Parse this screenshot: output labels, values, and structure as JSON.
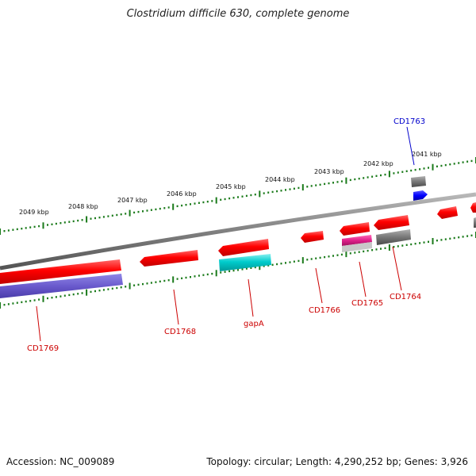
{
  "title": "Clostridium difficile 630, complete genome",
  "footer": {
    "accession": "Accession: NC_009089",
    "meta": "Topology: circular; Length: 4,290,252 bp; Genes: 3,926"
  },
  "scale_ticks": [
    {
      "label": "2049 kbp"
    },
    {
      "label": "2048 kbp"
    },
    {
      "label": "2047 kbp"
    },
    {
      "label": "2046 kbp"
    },
    {
      "label": "2045 kbp"
    },
    {
      "label": "2044 kbp"
    },
    {
      "label": "2043 kbp"
    },
    {
      "label": "2042 kbp"
    },
    {
      "label": "2041 kbp"
    }
  ],
  "gene_labels": {
    "cd1763": "CD1763",
    "cd1764": "CD1764",
    "cd1765": "CD1765",
    "cd1766": "CD1766",
    "gapa": "gapA",
    "cd1768": "CD1768",
    "cd1769": "CD1769"
  },
  "colors": {
    "label_red": "#cc0000",
    "label_blue": "#0000cc",
    "backbone": "#808080",
    "tick_green": "#1a7a1a",
    "feature_red": "#ff0000",
    "feature_blue_violet": "#6a5acd",
    "feature_cyan": "#00c8c8",
    "feature_magenta": "#e0208a",
    "feature_gray": "#777777",
    "feature_blue": "#0000ff"
  }
}
